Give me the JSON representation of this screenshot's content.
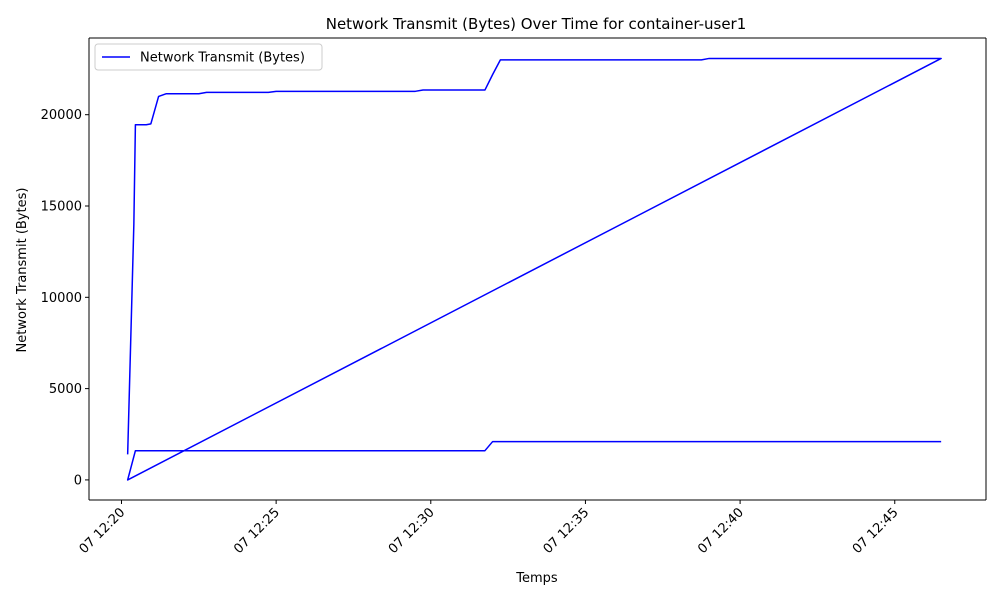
{
  "chart_data": {
    "type": "line",
    "title": "Network Transmit (Bytes) Over Time for container-user1",
    "xlabel": "Temps",
    "ylabel": "Network Transmit (Bytes)",
    "x_tick_labels": [
      "07 12:20",
      "07 12:25",
      "07 12:30",
      "07 12:35",
      "07 12:40",
      "07 12:45"
    ],
    "x_ticks_minutes": [
      0,
      5,
      10,
      15,
      20,
      25
    ],
    "x_range_minutes": [
      -1.05,
      27.95
    ],
    "y_tick_labels": [
      "0",
      "5000",
      "10000",
      "15000",
      "20000"
    ],
    "y_ticks": [
      0,
      5000,
      10000,
      15000,
      20000
    ],
    "ylim": [
      -1100,
      24200
    ],
    "grid": false,
    "legend_position": "top-left",
    "series": [
      {
        "name": "Network Transmit (Bytes)",
        "color": "#0000ff",
        "points": [
          [
            0.2,
            1400
          ],
          [
            0.4,
            14000
          ],
          [
            0.45,
            19450
          ],
          [
            0.8,
            19450
          ],
          [
            0.95,
            19500
          ],
          [
            1.2,
            21000
          ],
          [
            1.45,
            21150
          ],
          [
            2.5,
            21150
          ],
          [
            2.75,
            21220
          ],
          [
            4.75,
            21220
          ],
          [
            5.0,
            21280
          ],
          [
            9.5,
            21280
          ],
          [
            9.75,
            21350
          ],
          [
            11.75,
            21350
          ],
          [
            12.0,
            22200
          ],
          [
            12.25,
            23000
          ],
          [
            18.75,
            23000
          ],
          [
            19.0,
            23080
          ],
          [
            26.5,
            23080
          ],
          [
            0.2,
            0
          ],
          [
            0.45,
            1600
          ],
          [
            11.75,
            1600
          ],
          [
            12.0,
            2100
          ],
          [
            26.5,
            2100
          ]
        ]
      }
    ]
  }
}
